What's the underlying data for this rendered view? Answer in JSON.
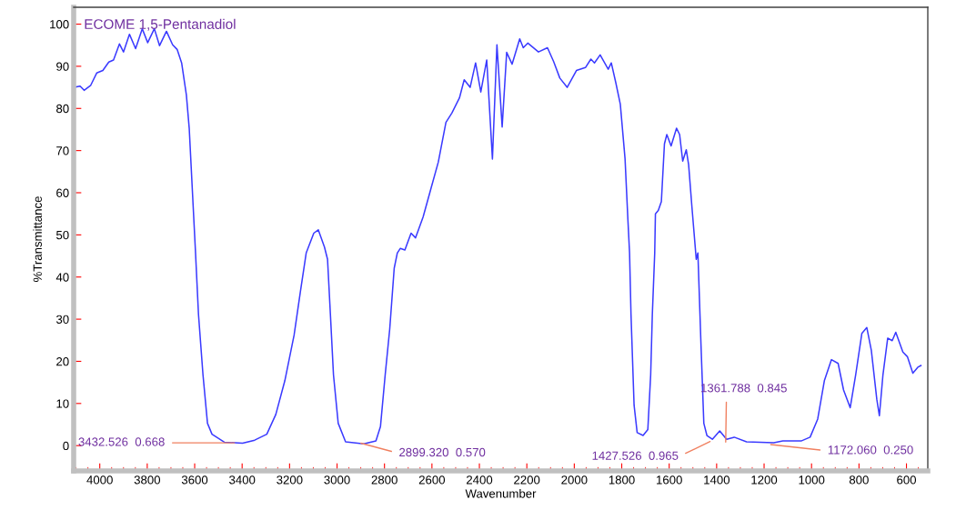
{
  "chart_data": {
    "type": "line",
    "title": "ECOME 1,5-Pentanadiol",
    "xlabel": "Wavenumber",
    "ylabel": "%Transmittance",
    "xlim": [
      4110,
      510
    ],
    "ylim": [
      -6,
      104
    ],
    "xticks": [
      4000,
      3800,
      3600,
      3400,
      3200,
      3000,
      2800,
      2600,
      2400,
      2200,
      2000,
      1800,
      1600,
      1400,
      1200,
      1000,
      800,
      600
    ],
    "yticks": [
      0,
      10,
      20,
      30,
      40,
      50,
      60,
      70,
      80,
      90,
      100
    ],
    "series": [
      {
        "color": "#3a3aff",
        "x": [
          4109,
          4083,
          4066,
          4038,
          4013,
          3987,
          3962,
          3942,
          3917,
          3900,
          3875,
          3849,
          3821,
          3798,
          3770,
          3748,
          3719,
          3693,
          3674,
          3655,
          3635,
          3623,
          3610,
          3597,
          3584,
          3565,
          3546,
          3527,
          3475,
          3398,
          3347,
          3296,
          3258,
          3220,
          3181,
          3155,
          3130,
          3098,
          3079,
          3053,
          3040,
          3028,
          3015,
          2995,
          2964,
          2887,
          2836,
          2817,
          2797,
          2778,
          2759,
          2746,
          2733,
          2714,
          2688,
          2669,
          2637,
          2605,
          2573,
          2541,
          2516,
          2484,
          2464,
          2439,
          2416,
          2394,
          2369,
          2345,
          2326,
          2304,
          2285,
          2262,
          2230,
          2215,
          2196,
          2151,
          2113,
          2087,
          2061,
          2030,
          1991,
          1953,
          1930,
          1915,
          1891,
          1857,
          1844,
          1825,
          1806,
          1786,
          1774,
          1767,
          1761,
          1748,
          1735,
          1710,
          1690,
          1678,
          1671,
          1661,
          1658,
          1646,
          1633,
          1620,
          1610,
          1592,
          1569,
          1556,
          1543,
          1528,
          1518,
          1505,
          1486,
          1479,
          1466,
          1454,
          1441,
          1418,
          1387,
          1358,
          1326,
          1274,
          1159,
          1121,
          1044,
          1006,
          974,
          946,
          916,
          888,
          865,
          837,
          814,
          788,
          767,
          748,
          725,
          714,
          699,
          679,
          660,
          645,
          615,
          596,
          573,
          552,
          539
        ],
        "values": [
          85.0,
          85.3,
          84.3,
          85.5,
          88.4,
          89.0,
          91.0,
          91.5,
          95.3,
          93.4,
          97.6,
          94.2,
          98.9,
          95.6,
          98.9,
          94.9,
          98.3,
          95.1,
          94.0,
          90.8,
          83.2,
          75.3,
          60.8,
          46.4,
          31.2,
          16.8,
          5.3,
          2.7,
          0.8,
          0.6,
          1.3,
          2.7,
          7.4,
          15.4,
          26.2,
          36.3,
          45.7,
          50.4,
          51.2,
          47.1,
          44.2,
          31.2,
          16.8,
          5.3,
          0.9,
          0.4,
          1.1,
          4.5,
          16.8,
          27.6,
          42.1,
          45.7,
          46.8,
          46.4,
          50.4,
          49.3,
          54.3,
          60.8,
          67.3,
          76.7,
          78.9,
          82.5,
          86.8,
          85.0,
          90.8,
          83.9,
          91.5,
          68.0,
          95.1,
          75.6,
          93.3,
          90.5,
          96.5,
          94.4,
          95.5,
          93.4,
          94.4,
          91.1,
          87.2,
          85.0,
          89.0,
          89.7,
          91.7,
          90.8,
          92.7,
          89.3,
          90.8,
          86.1,
          81.0,
          68.0,
          53.6,
          45.7,
          31.2,
          9.6,
          3.1,
          2.4,
          3.8,
          16.8,
          31.2,
          45.7,
          55.0,
          55.8,
          57.9,
          71.6,
          73.8,
          71.1,
          75.3,
          73.8,
          67.5,
          70.2,
          66.6,
          57.2,
          44.2,
          45.7,
          24.0,
          5.3,
          2.4,
          1.5,
          3.5,
          1.5,
          2.0,
          0.9,
          0.7,
          1.1,
          1.1,
          2.0,
          6.3,
          15.4,
          20.4,
          19.5,
          13.2,
          9.0,
          16.8,
          26.6,
          28.0,
          22.6,
          11.0,
          7.1,
          16.8,
          25.5,
          24.9,
          26.9,
          22.2,
          21.1,
          17.2,
          18.6,
          19.0
        ]
      }
    ],
    "annotations": [
      {
        "text": "3432.526  0.668",
        "x": 3432.526,
        "y": 0.668
      },
      {
        "text": "2899.320  0.570",
        "x": 2899.32,
        "y": 0.57
      },
      {
        "text": "1427.526  0.965",
        "x": 1427.526,
        "y": 0.965
      },
      {
        "text": "1361.788  0.845",
        "x": 1361.788,
        "y": 0.845
      },
      {
        "text": "1172.060  0.250",
        "x": 1172.06,
        "y": 0.25
      }
    ]
  }
}
